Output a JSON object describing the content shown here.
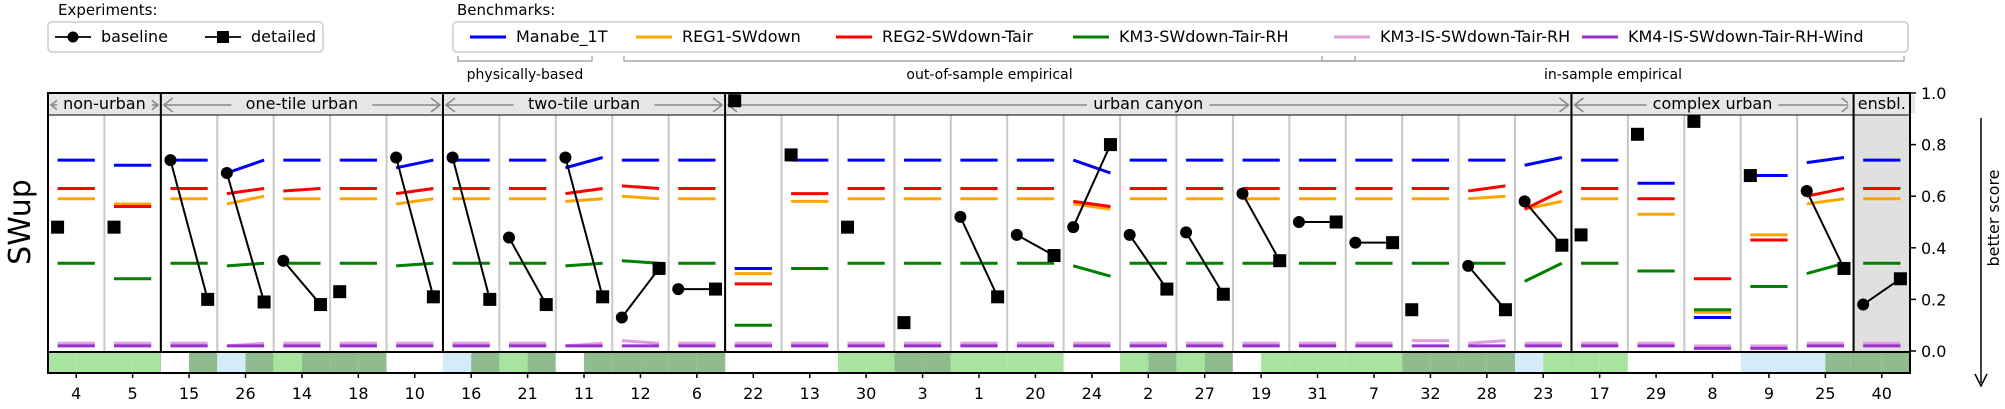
{
  "legend_experiments": {
    "title": "Experiments:",
    "items": [
      {
        "label": "baseline",
        "marker": "circle"
      },
      {
        "label": "detailed",
        "marker": "square"
      }
    ]
  },
  "legend_benchmarks": {
    "title": "Benchmarks:",
    "items": [
      {
        "label": "Manabe_1T",
        "color": "#0000ff"
      },
      {
        "label": "REG1-SWdown",
        "color": "#ffa500"
      },
      {
        "label": "REG2-SWdown-Tair",
        "color": "#ff0000"
      },
      {
        "label": "KM3-SWdown-Tair-RH",
        "color": "#008000"
      },
      {
        "label": "KM3-IS-SWdown-Tair-RH",
        "color": "#dda0dd"
      },
      {
        "label": "KM4-IS-SWdown-Tair-RH-Wind",
        "color": "#9932cc"
      }
    ],
    "groups": [
      {
        "label": "physically-based",
        "from": 0,
        "to": 0
      },
      {
        "label": "out-of-sample empirical",
        "from": 1,
        "to": 3
      },
      {
        "label": "in-sample empirical",
        "from": 4,
        "to": 5
      }
    ]
  },
  "chart_data": {
    "type": "scatter",
    "ylabel": "SWup",
    "right_label": "better score",
    "ylim": [
      0,
      1
    ],
    "yticks": [
      "0.0",
      "0.2",
      "0.4",
      "0.6",
      "0.8",
      "1.0"
    ],
    "grid": "vertical separators between sites",
    "groups": [
      {
        "label": "non-urban",
        "sites": [
          "4",
          "5"
        ]
      },
      {
        "label": "one-tile urban",
        "sites": [
          "15",
          "26",
          "14",
          "18",
          "10"
        ]
      },
      {
        "label": "two-tile urban",
        "sites": [
          "16",
          "21",
          "11",
          "12",
          "6"
        ]
      },
      {
        "label": "urban canyon",
        "sites": [
          "22",
          "13",
          "30",
          "3",
          "1",
          "20",
          "24",
          "2",
          "27",
          "19",
          "31",
          "7",
          "32",
          "28",
          "23"
        ]
      },
      {
        "label": "complex urban",
        "sites": [
          "17",
          "29",
          "8",
          "9",
          "25"
        ]
      },
      {
        "label": "ensbl.",
        "sites": [
          "40"
        ]
      }
    ],
    "sites": [
      "4",
      "5",
      "15",
      "26",
      "14",
      "18",
      "10",
      "16",
      "21",
      "11",
      "12",
      "6",
      "22",
      "13",
      "30",
      "3",
      "1",
      "20",
      "24",
      "2",
      "27",
      "19",
      "31",
      "7",
      "32",
      "28",
      "23",
      "17",
      "29",
      "8",
      "9",
      "25",
      "40"
    ],
    "series": [
      {
        "name": "baseline",
        "marker": "circle",
        "values": [
          null,
          null,
          0.74,
          0.69,
          0.35,
          null,
          0.75,
          0.75,
          0.44,
          0.75,
          0.13,
          0.24,
          null,
          null,
          null,
          null,
          0.52,
          0.45,
          0.48,
          0.45,
          0.46,
          0.61,
          0.5,
          0.42,
          null,
          0.33,
          0.58,
          null,
          null,
          null,
          null,
          0.62,
          0.18
        ]
      },
      {
        "name": "detailed",
        "marker": "square",
        "values": [
          0.48,
          0.48,
          0.2,
          0.19,
          0.18,
          0.23,
          0.21,
          0.2,
          0.18,
          0.21,
          0.32,
          0.24,
          0.97,
          0.76,
          0.48,
          0.11,
          0.21,
          0.37,
          0.8,
          0.24,
          0.22,
          0.35,
          0.5,
          0.42,
          0.16,
          0.16,
          0.41,
          0.45,
          0.84,
          0.89,
          0.68,
          0.32,
          0.28
        ]
      }
    ],
    "benchmarks": [
      {
        "name": "Manabe_1T",
        "values": [
          [
            0.74,
            0.74
          ],
          [
            0.72,
            0.72
          ],
          [
            0.74,
            0.74
          ],
          [
            0.69,
            0.74
          ],
          [
            0.74,
            0.74
          ],
          [
            0.74,
            0.74
          ],
          [
            0.71,
            0.74
          ],
          [
            0.74,
            0.74
          ],
          [
            0.74,
            0.74
          ],
          [
            0.71,
            0.75
          ],
          [
            0.74,
            0.74
          ],
          [
            0.74,
            0.74
          ],
          [
            0.32,
            0.32
          ],
          [
            0.74,
            0.74
          ],
          [
            0.74,
            0.74
          ],
          [
            0.74,
            0.74
          ],
          [
            0.74,
            0.74
          ],
          [
            0.74,
            0.74
          ],
          [
            0.74,
            0.69
          ],
          [
            0.74,
            0.74
          ],
          [
            0.74,
            0.74
          ],
          [
            0.74,
            0.74
          ],
          [
            0.74,
            0.74
          ],
          [
            0.74,
            0.74
          ],
          [
            0.74,
            0.74
          ],
          [
            0.74,
            0.74
          ],
          [
            0.72,
            0.75
          ],
          [
            0.74,
            0.74
          ],
          [
            0.65,
            0.65
          ],
          [
            0.13,
            0.13
          ],
          [
            0.68,
            0.68
          ],
          [
            0.73,
            0.75
          ],
          [
            0.74,
            0.74
          ]
        ]
      },
      {
        "name": "REG1-SWdown",
        "values": [
          [
            0.59,
            0.59
          ],
          [
            0.57,
            0.57
          ],
          [
            0.59,
            0.59
          ],
          [
            0.57,
            0.6
          ],
          [
            0.59,
            0.59
          ],
          [
            0.59,
            0.59
          ],
          [
            0.57,
            0.59
          ],
          [
            0.59,
            0.59
          ],
          [
            0.59,
            0.59
          ],
          [
            0.58,
            0.59
          ],
          [
            0.6,
            0.59
          ],
          [
            0.59,
            0.59
          ],
          [
            0.3,
            0.3
          ],
          [
            0.58,
            0.58
          ],
          [
            0.59,
            0.59
          ],
          [
            0.59,
            0.59
          ],
          [
            0.59,
            0.59
          ],
          [
            0.59,
            0.59
          ],
          [
            0.57,
            0.55
          ],
          [
            0.59,
            0.59
          ],
          [
            0.59,
            0.59
          ],
          [
            0.59,
            0.59
          ],
          [
            0.59,
            0.59
          ],
          [
            0.59,
            0.59
          ],
          [
            0.59,
            0.59
          ],
          [
            0.59,
            0.6
          ],
          [
            0.55,
            0.58
          ],
          [
            0.59,
            0.59
          ],
          [
            0.53,
            0.53
          ],
          [
            0.15,
            0.15
          ],
          [
            0.45,
            0.45
          ],
          [
            0.57,
            0.59
          ],
          [
            0.59,
            0.59
          ]
        ]
      },
      {
        "name": "REG2-SWdown-Tair",
        "values": [
          [
            0.63,
            0.63
          ],
          [
            0.56,
            0.56
          ],
          [
            0.63,
            0.63
          ],
          [
            0.61,
            0.63
          ],
          [
            0.62,
            0.63
          ],
          [
            0.63,
            0.63
          ],
          [
            0.61,
            0.63
          ],
          [
            0.63,
            0.63
          ],
          [
            0.63,
            0.63
          ],
          [
            0.61,
            0.63
          ],
          [
            0.64,
            0.63
          ],
          [
            0.63,
            0.63
          ],
          [
            0.26,
            0.26
          ],
          [
            0.61,
            0.61
          ],
          [
            0.63,
            0.63
          ],
          [
            0.63,
            0.63
          ],
          [
            0.63,
            0.63
          ],
          [
            0.63,
            0.63
          ],
          [
            0.58,
            0.56
          ],
          [
            0.63,
            0.63
          ],
          [
            0.63,
            0.63
          ],
          [
            0.63,
            0.63
          ],
          [
            0.63,
            0.63
          ],
          [
            0.63,
            0.63
          ],
          [
            0.63,
            0.63
          ],
          [
            0.62,
            0.64
          ],
          [
            0.55,
            0.62
          ],
          [
            0.63,
            0.63
          ],
          [
            0.59,
            0.59
          ],
          [
            0.28,
            0.28
          ],
          [
            0.43,
            0.43
          ],
          [
            0.6,
            0.63
          ],
          [
            0.63,
            0.63
          ]
        ]
      },
      {
        "name": "KM3-SWdown-Tair-RH",
        "values": [
          [
            0.34,
            0.34
          ],
          [
            0.28,
            0.28
          ],
          [
            0.34,
            0.34
          ],
          [
            0.33,
            0.34
          ],
          [
            0.34,
            0.34
          ],
          [
            0.34,
            0.34
          ],
          [
            0.33,
            0.34
          ],
          [
            0.34,
            0.34
          ],
          [
            0.34,
            0.34
          ],
          [
            0.33,
            0.34
          ],
          [
            0.35,
            0.34
          ],
          [
            0.34,
            0.34
          ],
          [
            0.1,
            0.1
          ],
          [
            0.32,
            0.32
          ],
          [
            0.34,
            0.34
          ],
          [
            0.34,
            0.34
          ],
          [
            0.34,
            0.34
          ],
          [
            0.34,
            0.34
          ],
          [
            0.33,
            0.29
          ],
          [
            0.34,
            0.34
          ],
          [
            0.34,
            0.34
          ],
          [
            0.34,
            0.34
          ],
          [
            0.34,
            0.34
          ],
          [
            0.34,
            0.34
          ],
          [
            0.34,
            0.34
          ],
          [
            0.34,
            0.34
          ],
          [
            0.27,
            0.34
          ],
          [
            0.34,
            0.34
          ],
          [
            0.31,
            0.31
          ],
          [
            0.16,
            0.16
          ],
          [
            0.25,
            0.25
          ],
          [
            0.3,
            0.34
          ],
          [
            0.34,
            0.34
          ]
        ]
      },
      {
        "name": "KM3-IS-SWdown-Tair-RH",
        "values": [
          [
            0.03,
            0.03
          ],
          [
            0.03,
            0.03
          ],
          [
            0.03,
            0.03
          ],
          [
            0.02,
            0.03
          ],
          [
            0.03,
            0.03
          ],
          [
            0.03,
            0.03
          ],
          [
            0.03,
            0.03
          ],
          [
            0.03,
            0.03
          ],
          [
            0.03,
            0.03
          ],
          [
            0.02,
            0.03
          ],
          [
            0.04,
            0.03
          ],
          [
            0.03,
            0.03
          ],
          [
            0.03,
            0.03
          ],
          [
            0.03,
            0.03
          ],
          [
            0.03,
            0.03
          ],
          [
            0.03,
            0.03
          ],
          [
            0.03,
            0.03
          ],
          [
            0.03,
            0.03
          ],
          [
            0.03,
            0.03
          ],
          [
            0.03,
            0.03
          ],
          [
            0.03,
            0.03
          ],
          [
            0.03,
            0.03
          ],
          [
            0.03,
            0.03
          ],
          [
            0.03,
            0.03
          ],
          [
            0.04,
            0.04
          ],
          [
            0.03,
            0.04
          ],
          [
            0.03,
            0.03
          ],
          [
            0.03,
            0.03
          ],
          [
            0.03,
            0.03
          ],
          [
            0.02,
            0.02
          ],
          [
            0.02,
            0.02
          ],
          [
            0.03,
            0.03
          ],
          [
            0.03,
            0.03
          ]
        ]
      },
      {
        "name": "KM4-IS-SWdown-Tair-RH-Wind",
        "values": [
          [
            0.02,
            0.02
          ],
          [
            0.02,
            0.02
          ],
          [
            0.02,
            0.02
          ],
          [
            0.02,
            0.02
          ],
          [
            0.02,
            0.02
          ],
          [
            0.02,
            0.02
          ],
          [
            0.02,
            0.02
          ],
          [
            0.02,
            0.02
          ],
          [
            0.02,
            0.02
          ],
          [
            0.02,
            0.02
          ],
          [
            0.02,
            0.02
          ],
          [
            0.02,
            0.02
          ],
          [
            0.02,
            0.02
          ],
          [
            0.02,
            0.02
          ],
          [
            0.02,
            0.02
          ],
          [
            0.02,
            0.02
          ],
          [
            0.02,
            0.02
          ],
          [
            0.02,
            0.02
          ],
          [
            0.02,
            0.02
          ],
          [
            0.02,
            0.02
          ],
          [
            0.02,
            0.02
          ],
          [
            0.02,
            0.02
          ],
          [
            0.02,
            0.02
          ],
          [
            0.02,
            0.02
          ],
          [
            0.02,
            0.02
          ],
          [
            0.02,
            0.02
          ],
          [
            0.02,
            0.02
          ],
          [
            0.02,
            0.02
          ],
          [
            0.02,
            0.02
          ],
          [
            0.01,
            0.01
          ],
          [
            0.01,
            0.01
          ],
          [
            0.02,
            0.02
          ],
          [
            0.02,
            0.02
          ]
        ]
      }
    ],
    "bottom_strip_colors": {
      "green": "#a8e4a0",
      "darkgreen": "#8fbc8f",
      "lightblue": "#d4ecf7",
      "white": "#ffffff"
    },
    "bottom_strip": [
      [
        "green",
        "green"
      ],
      [
        "green",
        "green"
      ],
      [
        "white",
        "darkgreen"
      ],
      [
        "lightblue",
        "darkgreen"
      ],
      [
        "green",
        "darkgreen"
      ],
      [
        "darkgreen",
        "darkgreen"
      ],
      [
        "white",
        "white"
      ],
      [
        "lightblue",
        "darkgreen"
      ],
      [
        "green",
        "darkgreen"
      ],
      [
        "white",
        "darkgreen"
      ],
      [
        "darkgreen",
        "darkgreen"
      ],
      [
        "darkgreen",
        "darkgreen"
      ],
      [
        "white",
        "white"
      ],
      [
        "white",
        "white"
      ],
      [
        "green",
        "green"
      ],
      [
        "darkgreen",
        "darkgreen"
      ],
      [
        "green",
        "green"
      ],
      [
        "green",
        "green"
      ],
      [
        "white",
        "white"
      ],
      [
        "green",
        "darkgreen"
      ],
      [
        "green",
        "darkgreen"
      ],
      [
        "white",
        "green"
      ],
      [
        "green",
        "green"
      ],
      [
        "green",
        "green"
      ],
      [
        "darkgreen",
        "darkgreen"
      ],
      [
        "darkgreen",
        "darkgreen"
      ],
      [
        "lightblue",
        "green"
      ],
      [
        "green",
        "green"
      ],
      [
        "white",
        "white"
      ],
      [
        "white",
        "white"
      ],
      [
        "lightblue",
        "lightblue"
      ],
      [
        "lightblue",
        "darkgreen"
      ],
      [
        "darkgreen",
        "darkgreen"
      ]
    ],
    "ensemble_shade": "#e0e0e0"
  }
}
